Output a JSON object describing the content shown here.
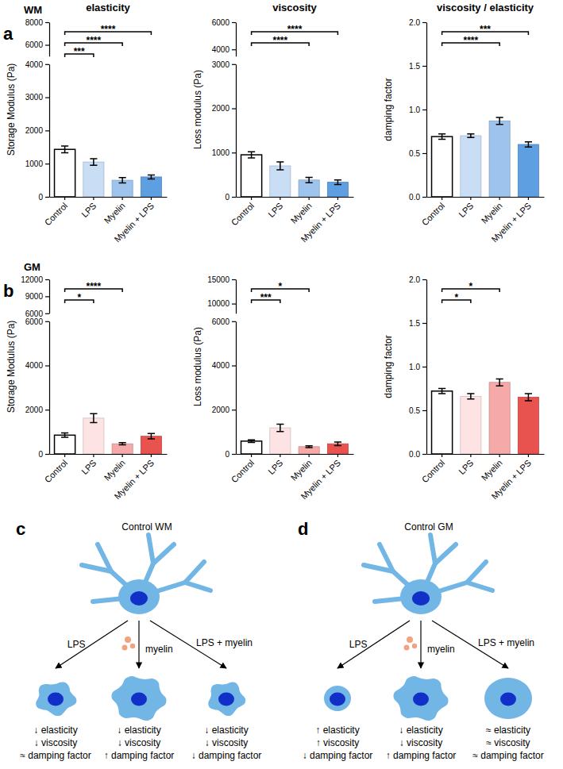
{
  "chart_data": [
    {
      "type": "bar",
      "title": "elasticity",
      "y_label": "Storage Modulus (Pa)",
      "categories": [
        "Control",
        "LPS",
        "Myelin",
        "Myelin + LPS"
      ],
      "values": [
        1430,
        1050,
        500,
        600
      ],
      "errors": [
        100,
        100,
        80,
        60
      ],
      "colors": [
        "#ffffff",
        "#c9ddf5",
        "#9ec4ee",
        "#5e9fe2"
      ],
      "ylim": [
        0,
        8000
      ],
      "ybreak": [
        4000,
        5000
      ],
      "yticks": [
        0,
        1000,
        2000,
        3000,
        4000,
        6000,
        8000
      ],
      "significance": [
        {
          "groups": [
            "Control",
            "LPS"
          ],
          "label": "***"
        },
        {
          "groups": [
            "Control",
            "Myelin"
          ],
          "label": "****"
        },
        {
          "groups": [
            "Control",
            "Myelin + LPS"
          ],
          "label": "****"
        }
      ]
    },
    {
      "type": "bar",
      "title": "viscosity",
      "y_label": "Loss modulus (Pa)",
      "categories": [
        "Control",
        "LPS",
        "Myelin",
        "Myelin + LPS"
      ],
      "values": [
        950,
        700,
        380,
        330
      ],
      "errors": [
        70,
        90,
        60,
        50
      ],
      "colors": [
        "#ffffff",
        "#c9ddf5",
        "#9ec4ee",
        "#5e9fe2"
      ],
      "ylim": [
        0,
        6000
      ],
      "ybreak": [
        3000,
        3500
      ],
      "yticks": [
        0,
        1000,
        2000,
        3000,
        4000,
        6000
      ],
      "significance": [
        {
          "groups": [
            "Control",
            "Myelin"
          ],
          "label": "****"
        },
        {
          "groups": [
            "Control",
            "Myelin + LPS"
          ],
          "label": "****"
        }
      ]
    },
    {
      "type": "bar",
      "title": "viscosity / elasticity",
      "y_label": "damping factor",
      "categories": [
        "Control",
        "LPS",
        "Myelin",
        "Myelin + LPS"
      ],
      "values": [
        0.69,
        0.7,
        0.87,
        0.6
      ],
      "errors": [
        0.03,
        0.02,
        0.04,
        0.03
      ],
      "colors": [
        "#ffffff",
        "#c9ddf5",
        "#9ec4ee",
        "#5e9fe2"
      ],
      "ylim": [
        0,
        2
      ],
      "yticks": [
        {
          "value": 0,
          "label": "0.0"
        },
        0.5,
        {
          "value": 1,
          "label": "1.0"
        },
        1.5,
        {
          "value": 2,
          "label": "2.0"
        }
      ],
      "significance": [
        {
          "groups": [
            "Control",
            "Myelin"
          ],
          "label": "****"
        },
        {
          "groups": [
            "Control",
            "Myelin + LPS"
          ],
          "label": "***"
        }
      ]
    },
    {
      "type": "bar",
      "y_label": "Storage Modulus (Pa)",
      "categories": [
        "Control",
        "LPS",
        "Myelin",
        "Myelin + LPS"
      ],
      "values": [
        850,
        1620,
        460,
        800
      ],
      "errors": [
        100,
        200,
        50,
        120
      ],
      "colors": [
        "#ffffff",
        "#fde3e3",
        "#f5a9a9",
        "#e8534f"
      ],
      "ylim": [
        0,
        12000
      ],
      "ybreak": [
        6000,
        6000
      ],
      "yticks": [
        0,
        2000,
        4000,
        6000,
        6000,
        9000,
        12000
      ],
      "significance": [
        {
          "groups": [
            "Control",
            "LPS"
          ],
          "label": "*"
        },
        {
          "groups": [
            "Control",
            "Myelin"
          ],
          "label": "****"
        }
      ]
    },
    {
      "type": "bar",
      "y_label": "Loss modulus (Pa)",
      "categories": [
        "Control",
        "LPS",
        "Myelin",
        "Myelin + LPS"
      ],
      "values": [
        580,
        1180,
        330,
        460
      ],
      "errors": [
        60,
        170,
        40,
        80
      ],
      "colors": [
        "#ffffff",
        "#fde3e3",
        "#f5a9a9",
        "#e8534f"
      ],
      "ylim": [
        0,
        15000
      ],
      "ybreak": [
        6000,
        8000
      ],
      "yticks": [
        0,
        2000,
        4000,
        6000,
        10000,
        15000
      ],
      "significance": [
        {
          "groups": [
            "Control",
            "LPS"
          ],
          "label": "***"
        },
        {
          "groups": [
            "Control",
            "Myelin"
          ],
          "label": "*"
        }
      ]
    },
    {
      "type": "bar",
      "y_label": "damping factor",
      "categories": [
        "Control",
        "LPS",
        "Myelin",
        "Myelin + LPS"
      ],
      "values": [
        0.72,
        0.66,
        0.82,
        0.65
      ],
      "errors": [
        0.03,
        0.03,
        0.04,
        0.04
      ],
      "colors": [
        "#ffffff",
        "#fde3e3",
        "#f5a9a9",
        "#e8534f"
      ],
      "ylim": [
        0,
        2
      ],
      "yticks": [
        {
          "value": 0,
          "label": "0.0"
        },
        0.5,
        {
          "value": 1,
          "label": "1.0"
        },
        1.5,
        {
          "value": 2,
          "label": "2.0"
        }
      ],
      "significance": [
        {
          "groups": [
            "Control",
            "LPS"
          ],
          "label": "*"
        },
        {
          "groups": [
            "Control",
            "Myelin"
          ],
          "label": "*"
        }
      ]
    }
  ],
  "figure": {
    "panel_labels": [
      "a",
      "b",
      "c",
      "d"
    ],
    "row_labels": [
      "WM",
      "GM"
    ],
    "diagrams": [
      {
        "title": "Control WM",
        "children": [
          {
            "label": "LPS",
            "lines": [
              "↓ elasticity",
              "↓ viscosity",
              "≈ damping factor"
            ]
          },
          {
            "label": "myelin",
            "lines": [
              "↓ elasticity",
              "↓ viscosity",
              "↑ damping factor"
            ]
          },
          {
            "label": "LPS + myelin",
            "lines": [
              "↓ elasticity",
              "↓ viscosity",
              "↓ damping factor"
            ]
          }
        ]
      },
      {
        "title": "Control GM",
        "children": [
          {
            "label": "LPS",
            "lines": [
              "↑ elasticity",
              "↑ viscosity",
              "↓ damping factor"
            ]
          },
          {
            "label": "myelin",
            "lines": [
              "↓ elasticity",
              "↓ viscosity",
              "↑ damping factor"
            ]
          },
          {
            "label": "LPS + myelin",
            "lines": [
              "≈ elasticity",
              "≈ viscosity",
              "≈ damping factor"
            ]
          }
        ]
      }
    ]
  }
}
